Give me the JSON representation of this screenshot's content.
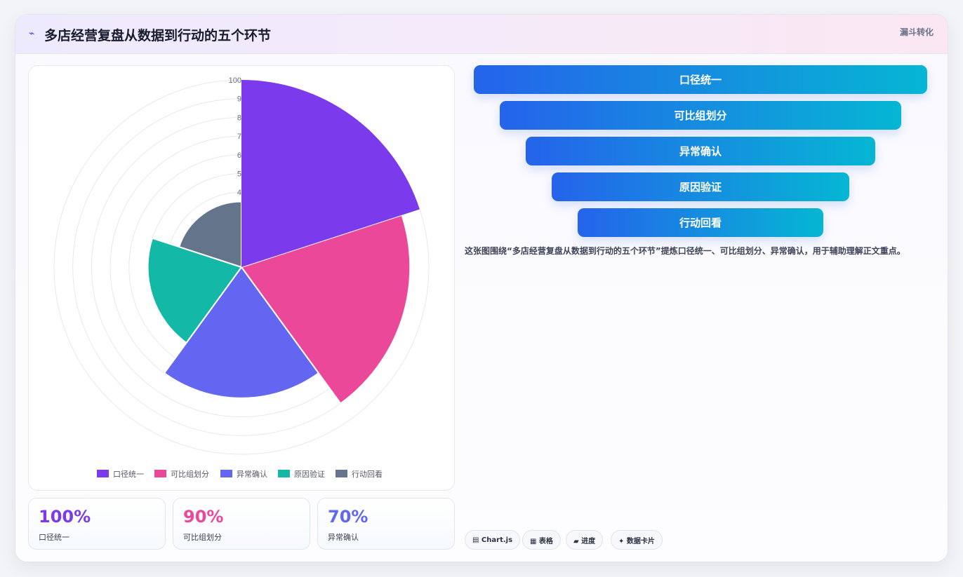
{
  "header": {
    "icon": "lightning-icon",
    "title": "多店经营复盘从数据到行动的五个环节",
    "tag": "漏斗转化"
  },
  "chart_data": {
    "type": "polarArea",
    "categories": [
      "口径统一",
      "可比组划分",
      "异常确认",
      "原因验证",
      "行动回看"
    ],
    "values": [
      100,
      90,
      70,
      50,
      35
    ],
    "colors": [
      "#7c3aed",
      "#ec4899",
      "#6366f1",
      "#14b8a6",
      "#64748b"
    ],
    "rlim": [
      0,
      100
    ],
    "visible_ticks": [
      "100",
      "9",
      "8",
      "7",
      "6",
      "5",
      "4"
    ],
    "legend_position": "bottom",
    "grid": true
  },
  "stats": [
    {
      "value": "100%",
      "label": "口径统一",
      "color": "#7c3aed"
    },
    {
      "value": "90%",
      "label": "可比组划分",
      "color": "#ec4899"
    },
    {
      "value": "70%",
      "label": "异常确认",
      "color": "#6366f1"
    }
  ],
  "funnel": [
    "口径统一",
    "可比组划分",
    "异常确认",
    "原因验证",
    "行动回看"
  ],
  "description": "这张图围绕“多店经营复盘从数据到行动的五个环节”提炼口径统一、可比组划分、异常确认，用于辅助理解正文重点。",
  "chips": [
    "▤ Chart.js",
    "▦ 表格",
    "▰ 进度",
    "✦ 数据卡片"
  ]
}
